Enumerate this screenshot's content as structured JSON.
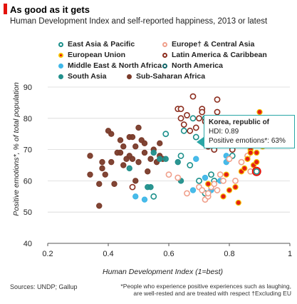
{
  "title": "As good as it gets",
  "subtitle": "Human Development Index and self-reported happiness, 2013 or latest",
  "legend": [
    {
      "label": "East Asia & Pacific",
      "fill": "#ffffff",
      "stroke": "#1b8f8a"
    },
    {
      "label": "Europe† & Central Asia",
      "fill": "#ffffff",
      "stroke": "#f0a08c"
    },
    {
      "label": "European Union",
      "fill": "#e3120b",
      "stroke": "#f5c400"
    },
    {
      "label": "Latin America & Caribbean",
      "fill": "#ffffff",
      "stroke": "#8c2d1e"
    },
    {
      "label": "Middle East & North Africa",
      "fill": "#3fb7e8",
      "stroke": "#3fb7e8"
    },
    {
      "label": "North America",
      "fill": "#ffffff",
      "stroke": "#14676a"
    },
    {
      "label": "South Asia",
      "fill": "#22908c",
      "stroke": "#22908c"
    },
    {
      "label": "Sub-Saharan Africa",
      "fill": "#7a3b2a",
      "stroke": "#7a3b2a"
    }
  ],
  "xlabel": "Human Development Index (1=best)",
  "ylabel": "Positive emotions*, % of total population",
  "sources": "Sources: UNDP; Gallup",
  "footnote": "*People who experience positive experiences such as laughing, are well-rested and are treated with respect †Excluding EU",
  "tooltip": {
    "name": "Korea, republic of",
    "hdi": "HDI: 0.89",
    "emotions": "Positive emotions*: 63%"
  },
  "chart_data": {
    "type": "scatter",
    "title": "As good as it gets",
    "subtitle": "Human Development Index and self-reported happiness, 2013 or latest",
    "xlabel": "Human Development Index (1=best)",
    "ylabel": "Positive emotions*, % of total population",
    "xlim": [
      0.2,
      1.0
    ],
    "ylim": [
      40,
      90
    ],
    "xticks": [
      "0.2",
      "0.4",
      "0.6",
      "0.8",
      "1"
    ],
    "yticks": [
      "40",
      "50",
      "60",
      "70",
      "80",
      "90"
    ],
    "grid": "horizontal",
    "highlight": {
      "name": "Korea, republic of",
      "x": 0.89,
      "y": 63
    },
    "series": [
      {
        "name": "Sub-Saharan Africa",
        "points": [
          [
            0.34,
            68
          ],
          [
            0.34,
            62
          ],
          [
            0.37,
            59
          ],
          [
            0.37,
            52
          ],
          [
            0.38,
            64
          ],
          [
            0.38,
            66
          ],
          [
            0.39,
            62
          ],
          [
            0.4,
            76
          ],
          [
            0.41,
            75
          ],
          [
            0.41,
            66
          ],
          [
            0.42,
            59
          ],
          [
            0.43,
            69
          ],
          [
            0.44,
            69
          ],
          [
            0.44,
            73
          ],
          [
            0.45,
            71
          ],
          [
            0.45,
            65
          ],
          [
            0.46,
            67
          ],
          [
            0.47,
            74
          ],
          [
            0.47,
            68
          ],
          [
            0.48,
            74
          ],
          [
            0.48,
            67
          ],
          [
            0.49,
            71
          ],
          [
            0.49,
            60
          ],
          [
            0.5,
            66
          ],
          [
            0.5,
            77
          ],
          [
            0.51,
            73
          ],
          [
            0.52,
            69
          ],
          [
            0.52,
            72
          ],
          [
            0.53,
            63
          ],
          [
            0.54,
            67
          ],
          [
            0.55,
            70
          ],
          [
            0.56,
            66
          ],
          [
            0.57,
            72
          ],
          [
            0.57,
            68
          ],
          [
            0.58,
            67
          ]
        ]
      },
      {
        "name": "South Asia",
        "points": [
          [
            0.47,
            64
          ],
          [
            0.53,
            58
          ],
          [
            0.54,
            58
          ],
          [
            0.55,
            69
          ],
          [
            0.57,
            67
          ],
          [
            0.59,
            67
          ],
          [
            0.63,
            66
          ],
          [
            0.64,
            60
          ]
        ]
      },
      {
        "name": "Middle East & North Africa",
        "points": [
          [
            0.49,
            55
          ],
          [
            0.52,
            54
          ],
          [
            0.59,
            75
          ],
          [
            0.68,
            57
          ],
          [
            0.69,
            67
          ],
          [
            0.72,
            61
          ],
          [
            0.74,
            57
          ],
          [
            0.75,
            70
          ],
          [
            0.77,
            60
          ],
          [
            0.79,
            68
          ],
          [
            0.79,
            66
          ],
          [
            0.81,
            71
          ],
          [
            0.83,
            75
          ],
          [
            0.83,
            78
          ],
          [
            0.84,
            79
          ],
          [
            0.87,
            74
          ],
          [
            0.89,
            76
          ]
        ]
      },
      {
        "name": "East Asia & Pacific",
        "points": [
          [
            0.55,
            55
          ],
          [
            0.59,
            75
          ],
          [
            0.64,
            68
          ],
          [
            0.65,
            76
          ],
          [
            0.67,
            65
          ],
          [
            0.68,
            80
          ],
          [
            0.69,
            74
          ],
          [
            0.7,
            60
          ],
          [
            0.72,
            80
          ],
          [
            0.72,
            56
          ],
          [
            0.73,
            78
          ],
          [
            0.74,
            62
          ],
          [
            0.75,
            60
          ],
          [
            0.77,
            74
          ],
          [
            0.78,
            76
          ],
          [
            0.81,
            68
          ],
          [
            0.82,
            79
          ],
          [
            0.88,
            74
          ],
          [
            0.89,
            63
          ],
          [
            0.91,
            78
          ],
          [
            0.92,
            80
          ]
        ]
      },
      {
        "name": "Latin America & Caribbean",
        "points": [
          [
            0.48,
            58
          ],
          [
            0.63,
            83
          ],
          [
            0.64,
            83
          ],
          [
            0.64,
            80
          ],
          [
            0.65,
            78
          ],
          [
            0.66,
            81
          ],
          [
            0.67,
            76
          ],
          [
            0.68,
            87
          ],
          [
            0.69,
            77
          ],
          [
            0.7,
            80
          ],
          [
            0.71,
            83
          ],
          [
            0.71,
            82
          ],
          [
            0.72,
            79
          ],
          [
            0.73,
            76
          ],
          [
            0.73,
            71
          ],
          [
            0.74,
            74
          ],
          [
            0.75,
            73
          ],
          [
            0.75,
            70
          ],
          [
            0.76,
            86
          ],
          [
            0.76,
            82
          ],
          [
            0.77,
            79
          ],
          [
            0.78,
            76
          ],
          [
            0.8,
            73
          ],
          [
            0.81,
            70
          ],
          [
            0.82,
            78
          ],
          [
            0.83,
            72
          ]
        ]
      },
      {
        "name": "Europe† & Central Asia",
        "points": [
          [
            0.6,
            62
          ],
          [
            0.63,
            61
          ],
          [
            0.66,
            56
          ],
          [
            0.7,
            58
          ],
          [
            0.71,
            57
          ],
          [
            0.72,
            54
          ],
          [
            0.73,
            55
          ],
          [
            0.73,
            56
          ],
          [
            0.74,
            58
          ],
          [
            0.75,
            59
          ],
          [
            0.76,
            57
          ],
          [
            0.77,
            62
          ],
          [
            0.78,
            60
          ],
          [
            0.8,
            67
          ],
          [
            0.82,
            60
          ],
          [
            0.84,
            66
          ],
          [
            0.86,
            68
          ],
          [
            0.87,
            63
          ],
          [
            0.93,
            80
          ],
          [
            0.94,
            78
          ]
        ]
      },
      {
        "name": "European Union",
        "points": [
          [
            0.73,
            59
          ],
          [
            0.78,
            55
          ],
          [
            0.79,
            62
          ],
          [
            0.8,
            57
          ],
          [
            0.82,
            58
          ],
          [
            0.83,
            53
          ],
          [
            0.84,
            63
          ],
          [
            0.85,
            64
          ],
          [
            0.86,
            67
          ],
          [
            0.87,
            70
          ],
          [
            0.87,
            69
          ],
          [
            0.88,
            72
          ],
          [
            0.88,
            65
          ],
          [
            0.89,
            69
          ],
          [
            0.89,
            66
          ],
          [
            0.9,
            72
          ],
          [
            0.9,
            77
          ],
          [
            0.9,
            82
          ],
          [
            0.91,
            71
          ],
          [
            0.92,
            73
          ],
          [
            0.92,
            80
          ]
        ]
      },
      {
        "name": "North America",
        "points": [
          [
            0.91,
            79
          ],
          [
            0.91,
            78
          ]
        ]
      }
    ]
  }
}
